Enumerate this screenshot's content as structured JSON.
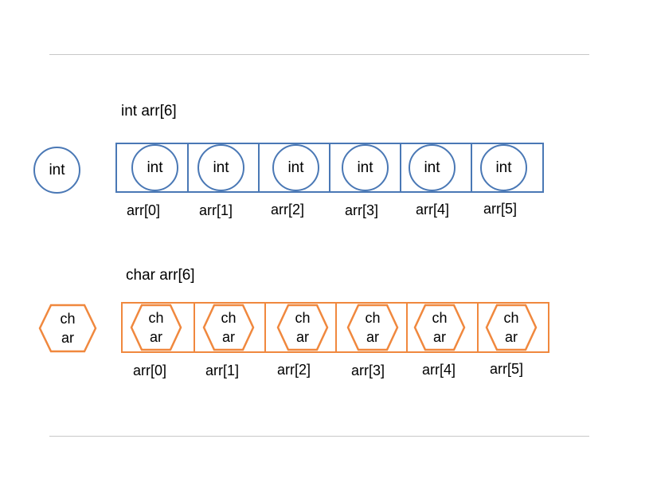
{
  "int_section": {
    "title": "int arr[6]",
    "legend_label": "int",
    "cells": [
      {
        "label": "int",
        "index": "arr[0]"
      },
      {
        "label": "int",
        "index": "arr[1]"
      },
      {
        "label": "int",
        "index": "arr[2]"
      },
      {
        "label": "int",
        "index": "arr[3]"
      },
      {
        "label": "int",
        "index": "arr[4]"
      },
      {
        "label": "int",
        "index": "arr[5]"
      }
    ]
  },
  "char_section": {
    "title": "char  arr[6]",
    "legend_line1": "ch",
    "legend_line2": "ar",
    "cells": [
      {
        "line1": "ch",
        "line2": "ar",
        "index": "arr[0]"
      },
      {
        "line1": "ch",
        "line2": "ar",
        "index": "arr[1]"
      },
      {
        "line1": "ch",
        "line2": "ar",
        "index": "arr[2]"
      },
      {
        "line1": "ch",
        "line2": "ar",
        "index": "arr[3]"
      },
      {
        "line1": "ch",
        "line2": "ar",
        "index": "arr[4]"
      },
      {
        "line1": "ch",
        "line2": "ar",
        "index": "arr[5]"
      }
    ]
  },
  "colors": {
    "int_stroke": "#4a78b5",
    "char_stroke": "#f0883e",
    "rule": "#c8c8c8"
  }
}
